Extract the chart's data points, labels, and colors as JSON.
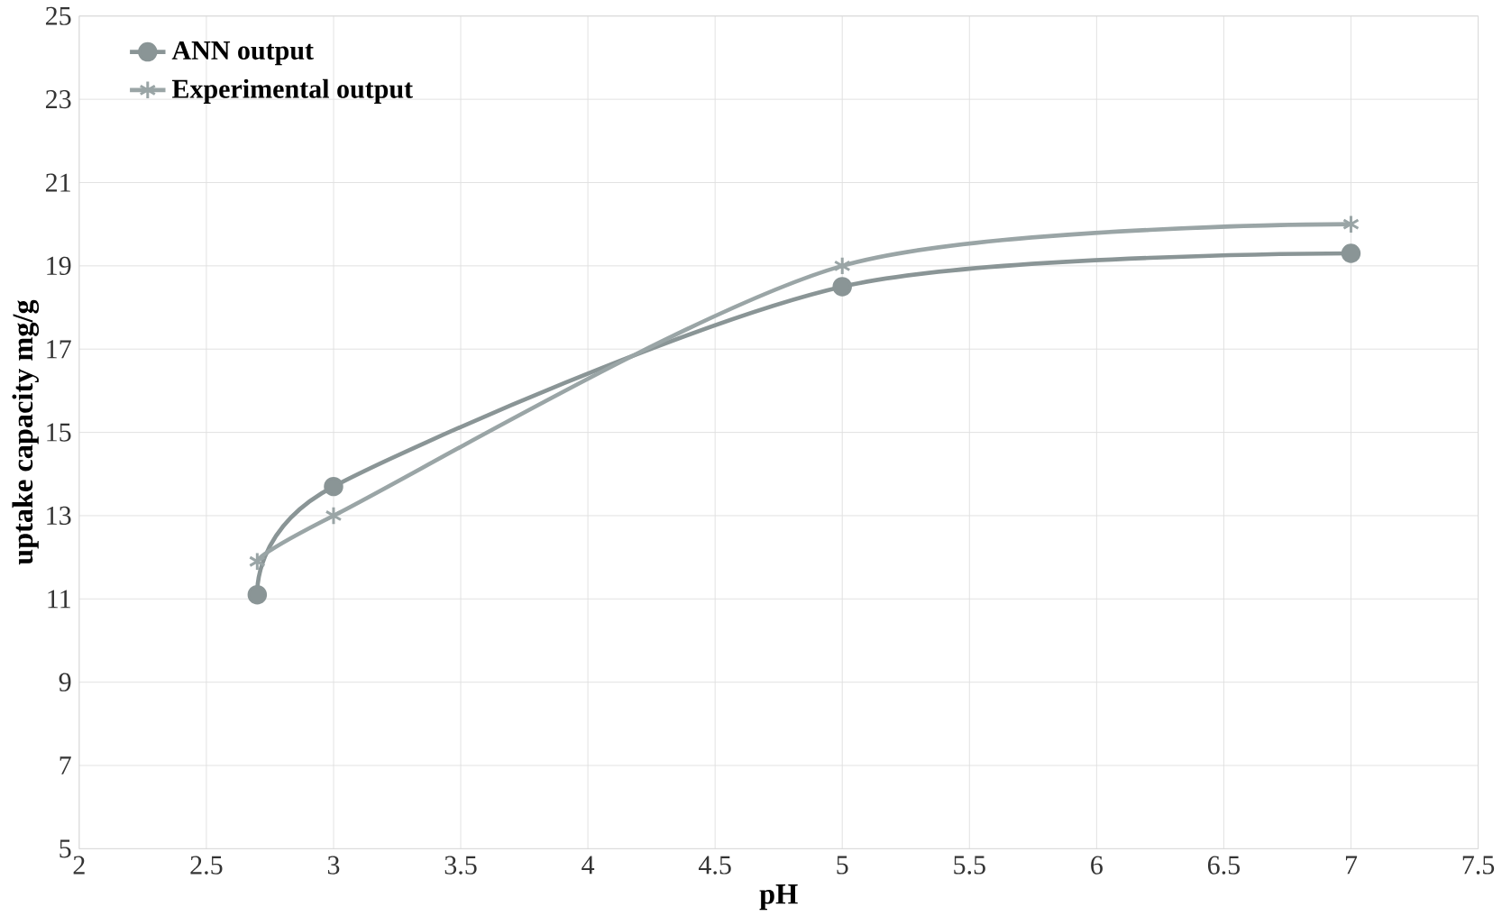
{
  "chart_data": {
    "type": "line",
    "xlabel": "pH",
    "ylabel": "uptake capacity mg/g",
    "x": [
      2.7,
      3,
      5,
      7
    ],
    "series": [
      {
        "name": "ANN output",
        "color": "#8a9596",
        "marker": "circle",
        "values": [
          11.1,
          13.7,
          18.5,
          19.3
        ]
      },
      {
        "name": "Experimental output",
        "color": "#9aa5a6",
        "marker": "cross",
        "values": [
          11.9,
          13.0,
          19.0,
          20.0
        ]
      }
    ],
    "xlim": [
      2,
      7.5
    ],
    "xticks": [
      2,
      2.5,
      3,
      3.5,
      4,
      4.5,
      5,
      5.5,
      6,
      6.5,
      7,
      7.5
    ],
    "ylim": [
      5,
      25
    ],
    "yticks": [
      5,
      7,
      9,
      11,
      13,
      15,
      17,
      19,
      21,
      23,
      25
    ],
    "grid": true,
    "legend": "top left"
  }
}
